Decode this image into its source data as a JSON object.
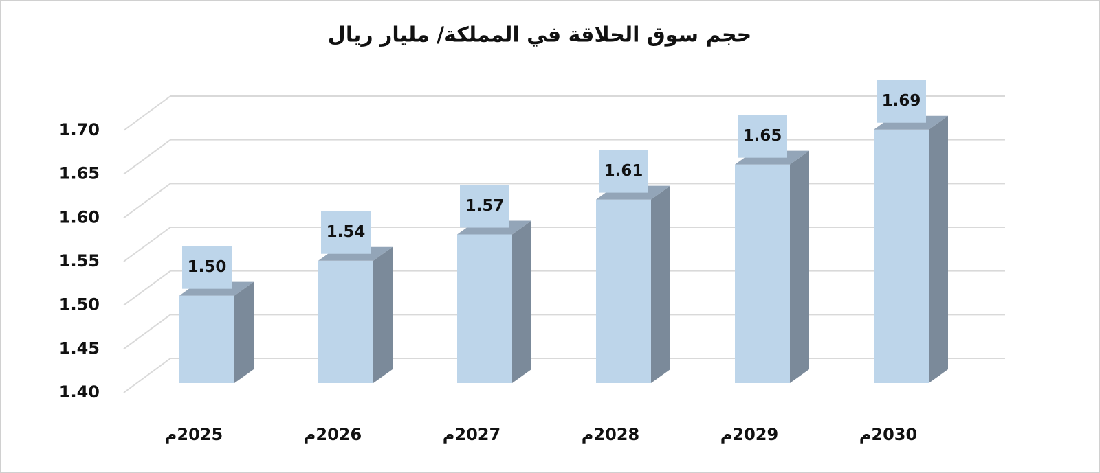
{
  "chart_data": {
    "type": "bar3d",
    "title": "حجم سوق الحلاقة في المملكة/ مليار ريال",
    "categories": [
      "2025م",
      "2026م",
      "2027م",
      "2028م",
      "2029م",
      "2030م"
    ],
    "values": [
      1.5,
      1.54,
      1.57,
      1.61,
      1.65,
      1.69
    ],
    "value_labels": [
      "1.50",
      "1.54",
      "1.57",
      "1.61",
      "1.65",
      "1.69"
    ],
    "color": "#bdd5ea",
    "ylim": [
      1.4,
      1.7
    ],
    "yticks": [
      {
        "value": 1.4,
        "label": "1.40"
      },
      {
        "value": 1.45,
        "label": "1.45"
      },
      {
        "value": 1.5,
        "label": "1.50"
      },
      {
        "value": 1.55,
        "label": "1.55"
      },
      {
        "value": 1.6,
        "label": "1.60"
      },
      {
        "value": 1.65,
        "label": "1.65"
      },
      {
        "value": 1.7,
        "label": "1.70"
      }
    ],
    "grid": true
  }
}
